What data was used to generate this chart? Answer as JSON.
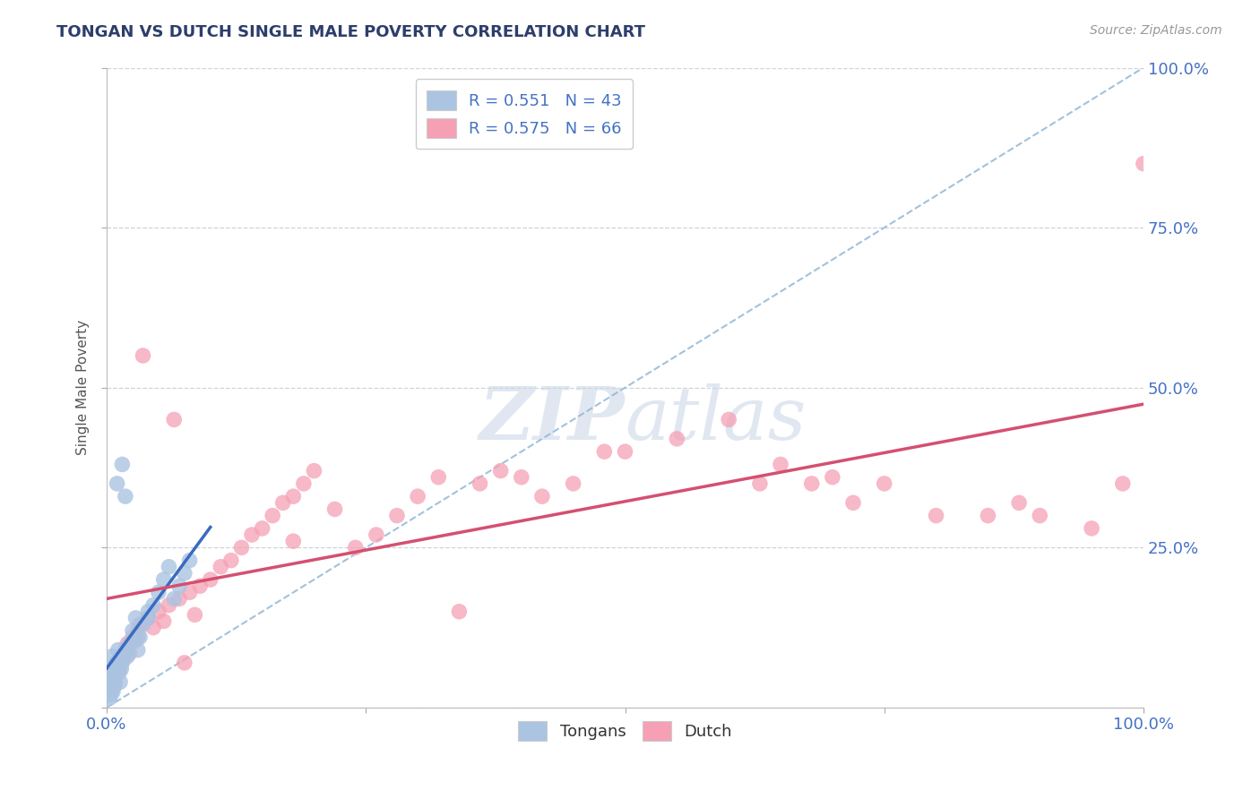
{
  "title": "TONGAN VS DUTCH SINGLE MALE POVERTY CORRELATION CHART",
  "source": "Source: ZipAtlas.com",
  "ylabel": "Single Male Poverty",
  "tongan_R": 0.551,
  "tongan_N": 43,
  "dutch_R": 0.575,
  "dutch_N": 66,
  "tongan_color": "#aac4e2",
  "dutch_color": "#f5a0b5",
  "tongan_line_color": "#3a6bbf",
  "dutch_line_color": "#d45070",
  "ref_line_color": "#90b8d8",
  "title_color": "#2c3e6b",
  "source_color": "#999999",
  "watermark_color": "#ccd8e8",
  "background_color": "#ffffff",
  "grid_color": "#c8d0d8",
  "axis_label_color": "#4472c4",
  "legend_text_color": "#4472c4",
  "tongan_x": [
    0.1,
    0.2,
    0.3,
    0.3,
    0.4,
    0.5,
    0.5,
    0.6,
    0.7,
    0.8,
    0.9,
    1.0,
    1.0,
    1.1,
    1.2,
    1.3,
    1.4,
    1.5,
    1.6,
    1.8,
    2.0,
    2.2,
    2.5,
    2.8,
    3.0,
    3.2,
    3.5,
    4.0,
    4.5,
    5.0,
    5.5,
    6.0,
    6.5,
    7.0,
    7.5,
    8.0,
    0.4,
    0.6,
    0.8,
    1.5,
    2.0,
    3.0,
    4.0
  ],
  "tongan_y": [
    2.0,
    4.0,
    1.5,
    6.0,
    3.0,
    5.0,
    8.0,
    2.5,
    4.5,
    3.5,
    7.0,
    6.5,
    35.0,
    9.0,
    5.5,
    4.0,
    6.0,
    38.0,
    7.5,
    33.0,
    8.0,
    10.0,
    12.0,
    14.0,
    9.0,
    11.0,
    13.0,
    15.0,
    16.0,
    18.0,
    20.0,
    22.0,
    17.0,
    19.0,
    21.0,
    23.0,
    2.0,
    3.0,
    5.0,
    7.0,
    9.0,
    11.0,
    14.0
  ],
  "dutch_x": [
    0.3,
    0.5,
    0.8,
    1.0,
    1.2,
    1.5,
    1.8,
    2.0,
    2.2,
    2.5,
    2.8,
    3.0,
    3.2,
    3.5,
    4.0,
    4.5,
    5.0,
    5.5,
    6.0,
    6.5,
    7.0,
    7.5,
    8.0,
    8.5,
    9.0,
    10.0,
    11.0,
    12.0,
    13.0,
    14.0,
    15.0,
    16.0,
    17.0,
    18.0,
    19.0,
    20.0,
    22.0,
    24.0,
    26.0,
    28.0,
    30.0,
    32.0,
    34.0,
    36.0,
    38.0,
    40.0,
    42.0,
    45.0,
    48.0,
    50.0,
    55.0,
    60.0,
    63.0,
    65.0,
    68.0,
    70.0,
    72.0,
    75.0,
    80.0,
    85.0,
    88.0,
    90.0,
    95.0,
    98.0,
    100.0,
    18.0
  ],
  "dutch_y": [
    3.0,
    5.0,
    4.0,
    7.0,
    6.0,
    8.0,
    9.0,
    10.0,
    8.5,
    11.0,
    10.5,
    12.0,
    13.0,
    55.0,
    14.0,
    12.5,
    15.0,
    13.5,
    16.0,
    45.0,
    17.0,
    7.0,
    18.0,
    14.5,
    19.0,
    20.0,
    22.0,
    23.0,
    25.0,
    27.0,
    28.0,
    30.0,
    32.0,
    33.0,
    35.0,
    37.0,
    31.0,
    25.0,
    27.0,
    30.0,
    33.0,
    36.0,
    15.0,
    35.0,
    37.0,
    36.0,
    33.0,
    35.0,
    40.0,
    40.0,
    42.0,
    45.0,
    35.0,
    38.0,
    35.0,
    36.0,
    32.0,
    35.0,
    30.0,
    30.0,
    32.0,
    30.0,
    28.0,
    35.0,
    85.0,
    26.0
  ]
}
